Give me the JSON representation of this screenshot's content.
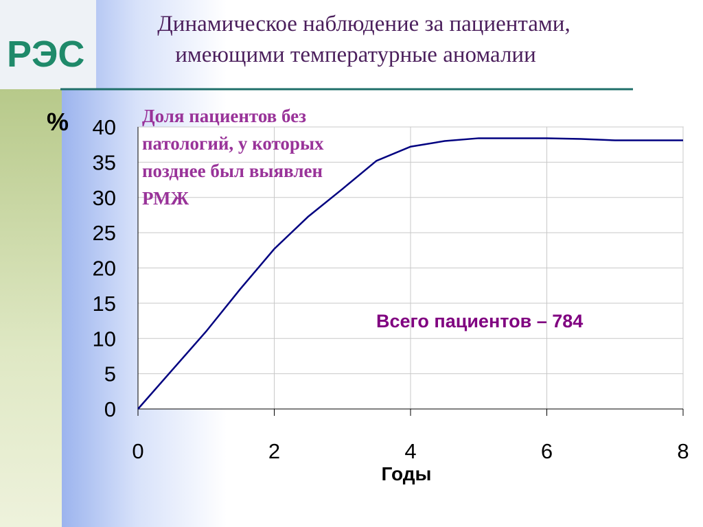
{
  "logo": "РЭС",
  "chart_data": {
    "type": "line",
    "title": [
      "Динамическое наблюдение за пациентами,",
      "имеющими температурные аномалии"
    ],
    "y_label": "%",
    "x_label": "Годы",
    "annotations": [
      [
        "Доля пациентов без",
        "патологий, у которых",
        "позднее  был выявлен",
        "РМЖ"
      ],
      "Всего пациентов – 784"
    ],
    "x": [
      0,
      0.5,
      1,
      1.5,
      2,
      2.5,
      3,
      3.5,
      4,
      4.5,
      5,
      5.5,
      6,
      6.5,
      7,
      7.5,
      8
    ],
    "series": [
      {
        "color": "#000080",
        "values": [
          0,
          5.5,
          11,
          17,
          22.7,
          27.3,
          31.2,
          35.2,
          37.2,
          38,
          38.4,
          38.4,
          38.4,
          38.3,
          38.1,
          38.1,
          38.1
        ]
      }
    ],
    "xlim": [
      0,
      8
    ],
    "xticks": [
      0,
      2,
      4,
      6,
      8
    ],
    "ylim": [
      0,
      40
    ],
    "yticks": [
      0,
      5,
      10,
      15,
      20,
      25,
      30,
      35,
      40
    ],
    "grid": true
  }
}
